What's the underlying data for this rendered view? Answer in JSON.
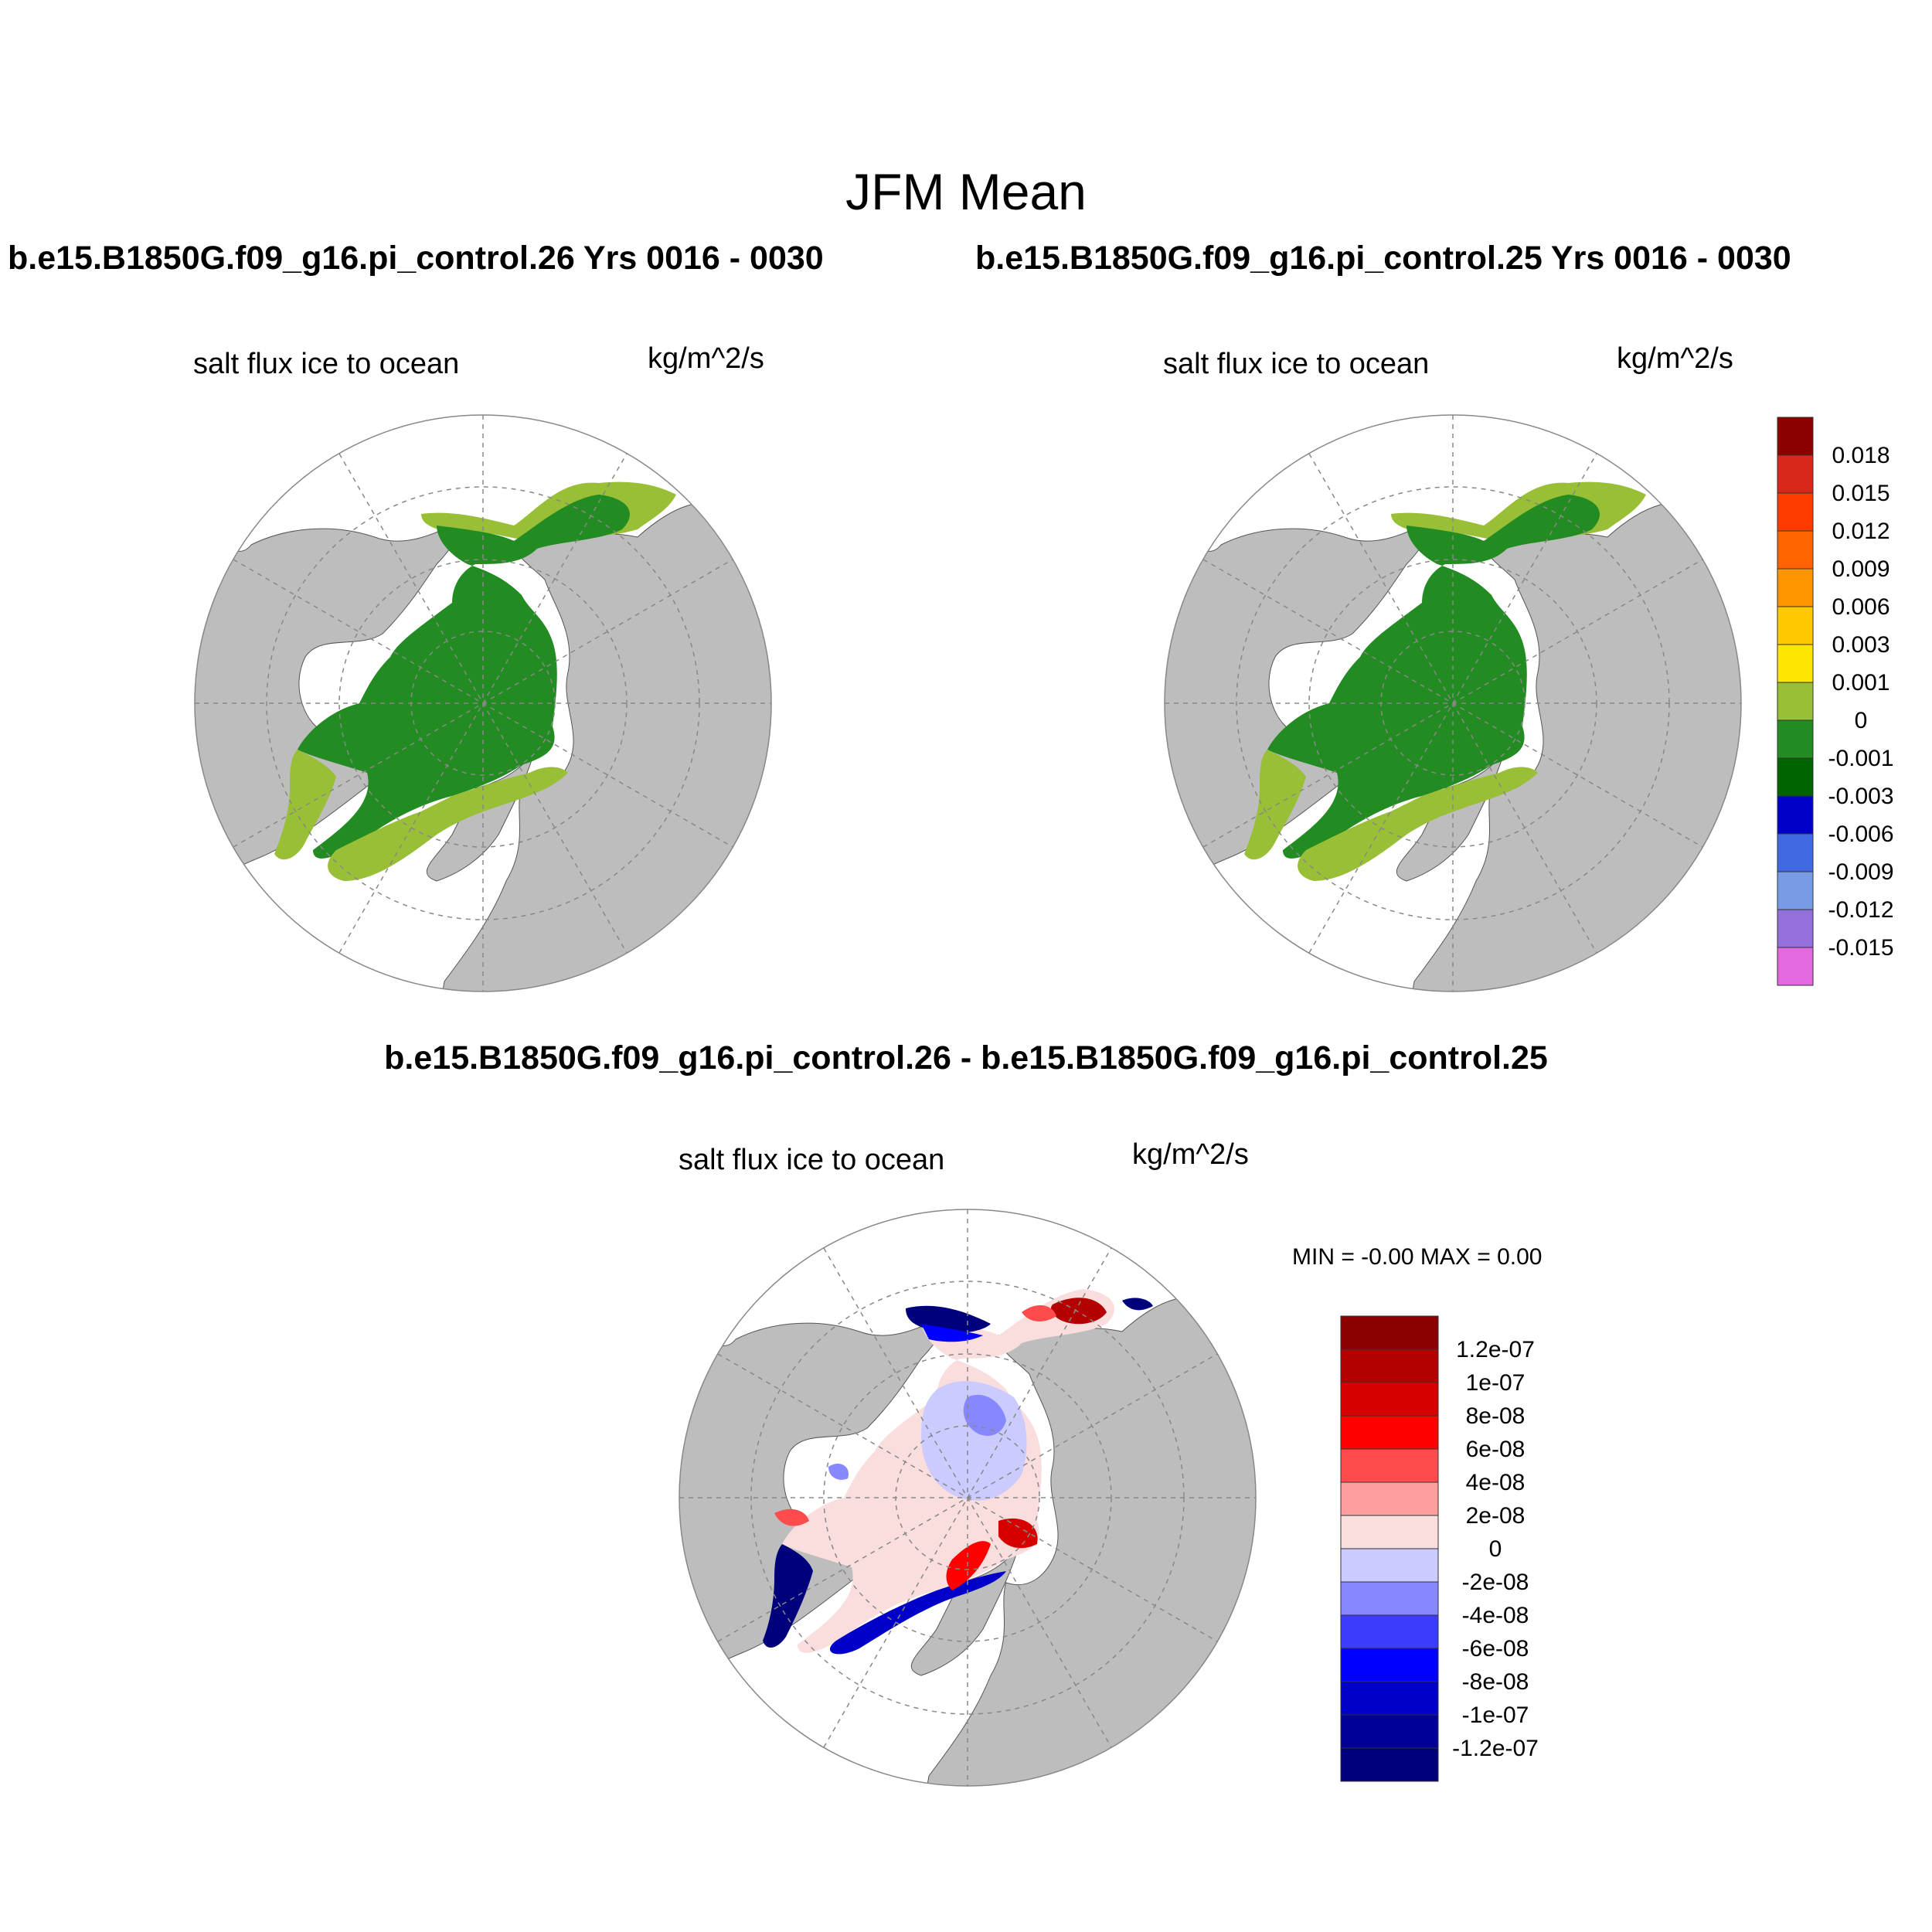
{
  "figure": {
    "title": "JFM Mean",
    "left_case": "b.e15.B1850G.f09_g16.pi_control.26  Yrs 0016 - 0030",
    "right_case": "b.e15.B1850G.f09_g16.pi_control.25  Yrs 0016 - 0030",
    "diff_title": "b.e15.B1850G.f09_g16.pi_control.26 - b.e15.B1850G.f09_g16.pi_control.25"
  },
  "panels": {
    "left": {
      "variable": "salt flux ice to ocean",
      "units": "kg/m^2/s"
    },
    "right": {
      "variable": "salt flux ice to ocean",
      "units": "kg/m^2/s"
    },
    "diff": {
      "variable": "salt flux ice to ocean",
      "units": "kg/m^2/s",
      "minmax": "MIN =  -0.00 MAX =   0.00"
    }
  },
  "colorbars": {
    "absolute": {
      "labels": [
        "0.018",
        "0.015",
        "0.012",
        "0.009",
        "0.006",
        "0.003",
        "0.001",
        "0",
        "-0.001",
        "-0.003",
        "-0.006",
        "-0.009",
        "-0.012",
        "-0.015"
      ],
      "colors": [
        "#8b0000",
        "#d7281b",
        "#ff3c00",
        "#ff6400",
        "#ff9600",
        "#ffc800",
        "#ffe600",
        "#98bf35",
        "#228b22",
        "#006400",
        "#0000c8",
        "#4169e1",
        "#789be6",
        "#9370db",
        "#e369e1"
      ]
    },
    "difference": {
      "labels": [
        "1.2e-07",
        "1e-07",
        "8e-08",
        "6e-08",
        "4e-08",
        "2e-08",
        "0",
        "-2e-08",
        "-4e-08",
        "-6e-08",
        "-8e-08",
        "-1e-07",
        "-1.2e-07"
      ],
      "colors": [
        "#8b0000",
        "#b40000",
        "#d70000",
        "#ff0000",
        "#ff4b4b",
        "#ff9e9e",
        "#fadede",
        "#cbcbff",
        "#8787ff",
        "#3c3cff",
        "#0000ff",
        "#0000c8",
        "#000096",
        "#00007d"
      ]
    }
  },
  "map_colors": {
    "land": "#bdbdbd",
    "ocean": "#ffffff",
    "ice_dark_green": "#228b22",
    "ice_light_green": "#98bf35"
  }
}
